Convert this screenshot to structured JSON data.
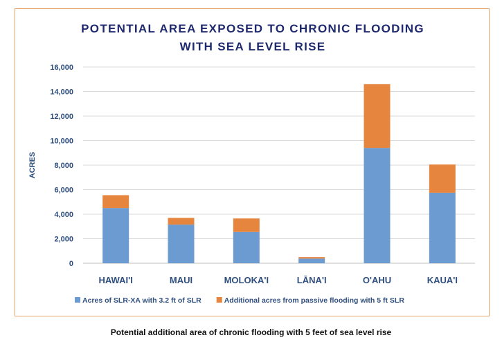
{
  "chart_data": {
    "type": "bar",
    "stacked": true,
    "title_lines": [
      "POTENTIAL AREA EXPOSED TO CHRONIC FLOODING",
      "WITH SEA LEVEL RISE"
    ],
    "xlabel": "",
    "ylabel": "ACRES",
    "ylim": [
      0,
      16000
    ],
    "yticks": [
      0,
      2000,
      4000,
      6000,
      8000,
      10000,
      12000,
      14000,
      16000
    ],
    "ytick_labels": [
      "0",
      "2,000",
      "4,000",
      "6,000",
      "8,000",
      "10,000",
      "12,000",
      "14,000",
      "16,000"
    ],
    "grid": true,
    "legend_position": "bottom",
    "categories": [
      "HAWAI'I",
      "MAUI",
      "MOLOKA'I",
      "LĀNA'I",
      "O'AHU",
      "KAUA'I"
    ],
    "series": [
      {
        "name": "Acres of SLR-XA with 3.2 ft  of SLR",
        "color": "#6c9bd1",
        "values": [
          4500,
          3150,
          2550,
          380,
          9400,
          5750
        ]
      },
      {
        "name": "Additional acres from passive flooding with 5 ft SLR",
        "color": "#e5853e",
        "values": [
          1050,
          550,
          1100,
          120,
          5200,
          2300
        ]
      }
    ],
    "colors": {
      "title": "#1f2a6e",
      "axis_text": "#2f4f7f",
      "grid": "#d9d9d9"
    }
  },
  "caption": "Potential additional area of chronic flooding with 5 feet of sea level rise"
}
